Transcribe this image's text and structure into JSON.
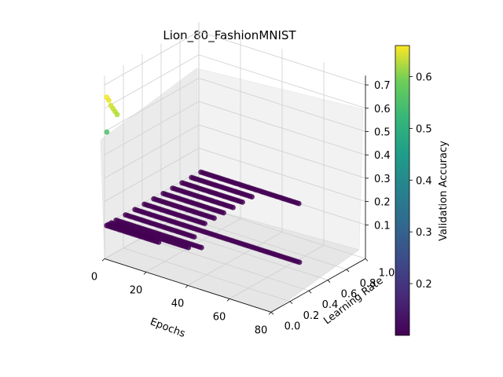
{
  "chart_data": {
    "type": "scatter",
    "subtype": "3d-scatter",
    "title": "Lion_80_FashionMNIST",
    "xlabel": "Epochs",
    "ylabel": "Learning Rate",
    "zlabel": "",
    "xlim": [
      0,
      80
    ],
    "ylim": [
      0.0,
      1.0
    ],
    "zlim": [
      0.1,
      0.7
    ],
    "x_ticks": [
      "0",
      "20",
      "40",
      "60",
      "80"
    ],
    "y_ticks": [
      "0.0",
      "0.2",
      "0.4",
      "0.6",
      "0.8",
      "1.0"
    ],
    "z_ticks": [
      "0.1",
      "0.2",
      "0.3",
      "0.4",
      "0.5",
      "0.6",
      "0.7"
    ],
    "colorbar": {
      "label": "Validation Accuracy",
      "colormap": "viridis",
      "range": [
        0.1,
        0.66
      ],
      "ticks": [
        "0.2",
        "0.3",
        "0.4",
        "0.5",
        "0.6"
      ]
    },
    "grid": true,
    "legend": "none",
    "series": [
      {
        "learning_rate": 0.001,
        "epochs": [
          1,
          2,
          3,
          4,
          5,
          6
        ],
        "accuracy": [
          0.65,
          0.64,
          0.62,
          0.61,
          0.6,
          0.59
        ]
      },
      {
        "learning_rate": 0.002,
        "epochs": [
          1
        ],
        "accuracy": [
          0.5
        ]
      },
      {
        "learning_rate": 0.0,
        "epoch_range": [
          1,
          26
        ],
        "accuracy": 0.1
      },
      {
        "learning_rate": 0.02,
        "epoch_range": [
          1,
          22
        ],
        "accuracy": 0.1
      },
      {
        "learning_rate": 0.05,
        "epoch_range": [
          1,
          38
        ],
        "accuracy": 0.1
      },
      {
        "learning_rate": 0.1,
        "epoch_range": [
          1,
          42
        ],
        "accuracy": 0.1
      },
      {
        "learning_rate": 0.2,
        "epoch_range": [
          1,
          34
        ],
        "accuracy": 0.1
      },
      {
        "learning_rate": 0.3,
        "epoch_range": [
          1,
          80
        ],
        "accuracy": 0.1
      },
      {
        "learning_rate": 0.4,
        "epoch_range": [
          1,
          30
        ],
        "accuracy": 0.1
      },
      {
        "learning_rate": 0.5,
        "epoch_range": [
          1,
          30
        ],
        "accuracy": 0.1
      },
      {
        "learning_rate": 0.6,
        "epoch_range": [
          1,
          30
        ],
        "accuracy": 0.1
      },
      {
        "learning_rate": 0.7,
        "epoch_range": [
          1,
          30
        ],
        "accuracy": 0.1
      },
      {
        "learning_rate": 0.8,
        "epoch_range": [
          1,
          30
        ],
        "accuracy": 0.1
      },
      {
        "learning_rate": 0.9,
        "epoch_range": [
          1,
          30
        ],
        "accuracy": 0.1
      },
      {
        "learning_rate": 1.0,
        "epoch_range": [
          1,
          48
        ],
        "accuracy": 0.1
      }
    ]
  }
}
